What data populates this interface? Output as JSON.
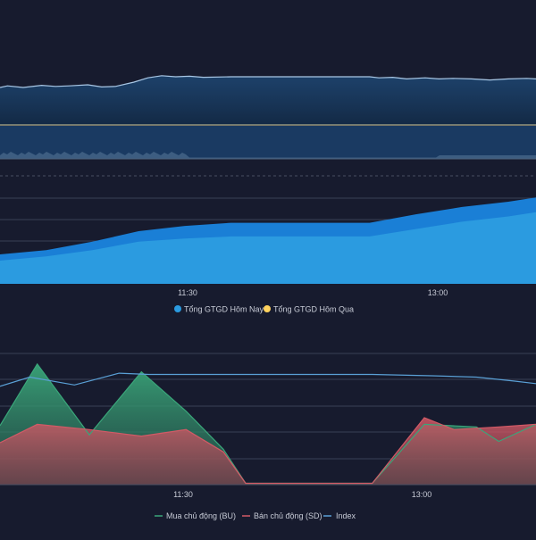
{
  "colors": {
    "background": "#171b2e",
    "grid": "#3a4055",
    "axis_text": "#c7cbd6",
    "index_line": "#a9c8e6",
    "today_gtgd": "#2b9be0",
    "today_gtgd_dark": "#1a7fd6",
    "yesterday_gtgd": "#ffd25e",
    "buy_active": "#3aa67a",
    "sell_active": "#d25a66",
    "index_legend": "#5aa0d6"
  },
  "chart_data": [
    {
      "id": "index-chart",
      "type": "line",
      "title": "",
      "series": [
        {
          "values": [
            [
              9.0,
              0.7
            ],
            [
              9.08,
              0.73
            ],
            [
              9.25,
              0.7
            ],
            [
              9.45,
              0.74
            ],
            [
              9.6,
              0.72
            ],
            [
              9.75,
              0.73
            ],
            [
              9.95,
              0.75
            ],
            [
              10.1,
              0.71
            ],
            [
              10.25,
              0.72
            ],
            [
              10.45,
              0.8
            ],
            [
              10.6,
              0.88
            ],
            [
              10.75,
              0.92
            ],
            [
              10.9,
              0.9
            ],
            [
              11.05,
              0.91
            ],
            [
              11.2,
              0.89
            ],
            [
              11.5,
              0.9
            ],
            [
              11.9,
              0.9
            ],
            [
              12.5,
              0.9
            ],
            [
              13.0,
              0.9
            ],
            [
              13.1,
              0.88
            ],
            [
              13.25,
              0.89
            ],
            [
              13.4,
              0.86
            ],
            [
              13.6,
              0.88
            ],
            [
              13.75,
              0.86
            ],
            [
              13.9,
              0.87
            ],
            [
              14.1,
              0.86
            ],
            [
              14.3,
              0.84
            ],
            [
              14.5,
              0.86
            ],
            [
              14.7,
              0.87
            ],
            [
              14.8,
              0.86
            ]
          ]
        }
      ]
    },
    {
      "id": "gtgd-chart",
      "type": "area",
      "x_ticks": [
        "11:30",
        "13:00"
      ],
      "series": [
        {
          "name": "Tổng GTGD Hôm Nay",
          "values": [
            [
              9.0,
              0.28
            ],
            [
              9.5,
              0.32
            ],
            [
              10.0,
              0.4
            ],
            [
              10.5,
              0.5
            ],
            [
              11.0,
              0.55
            ],
            [
              11.5,
              0.58
            ],
            [
              12.0,
              0.58
            ],
            [
              12.5,
              0.58
            ],
            [
              13.0,
              0.58
            ],
            [
              13.5,
              0.66
            ],
            [
              14.0,
              0.73
            ],
            [
              14.5,
              0.78
            ],
            [
              14.8,
              0.82
            ]
          ]
        },
        {
          "name": "Tổng GTGD Hôm Qua",
          "values": [
            [
              9.0,
              0.22
            ],
            [
              9.5,
              0.26
            ],
            [
              10.0,
              0.32
            ],
            [
              10.5,
              0.4
            ],
            [
              11.0,
              0.43
            ],
            [
              11.5,
              0.45
            ],
            [
              12.0,
              0.45
            ],
            [
              12.5,
              0.45
            ],
            [
              13.0,
              0.45
            ],
            [
              13.5,
              0.52
            ],
            [
              14.0,
              0.59
            ],
            [
              14.5,
              0.64
            ],
            [
              14.8,
              0.68
            ]
          ]
        }
      ]
    },
    {
      "id": "active-flow-chart",
      "type": "area",
      "x_ticks": [
        "11:30",
        "13:00"
      ],
      "series": [
        {
          "name": "Mua chủ động (BU)",
          "values": [
            [
              9.0,
              0.45
            ],
            [
              9.5,
              0.92
            ],
            [
              10.2,
              0.38
            ],
            [
              10.9,
              0.86
            ],
            [
              11.5,
              0.56
            ],
            [
              12.0,
              0.27
            ],
            [
              12.3,
              0.01
            ],
            [
              13.4,
              0.01
            ],
            [
              14.0,
              0.01
            ],
            [
              14.7,
              0.46
            ],
            [
              15.4,
              0.44
            ],
            [
              15.7,
              0.33
            ],
            [
              16.2,
              0.46
            ]
          ]
        },
        {
          "name": "Bán chủ động (SD)",
          "values": [
            [
              9.0,
              0.32
            ],
            [
              9.5,
              0.46
            ],
            [
              10.2,
              0.42
            ],
            [
              10.9,
              0.37
            ],
            [
              11.5,
              0.42
            ],
            [
              12.0,
              0.25
            ],
            [
              12.3,
              0.01
            ],
            [
              13.4,
              0.01
            ],
            [
              14.0,
              0.01
            ],
            [
              14.7,
              0.51
            ],
            [
              15.1,
              0.42
            ],
            [
              15.7,
              0.44
            ],
            [
              16.2,
              0.46
            ]
          ]
        },
        {
          "name": "Index",
          "values": [
            [
              9.0,
              0.75
            ],
            [
              9.4,
              0.82
            ],
            [
              10.0,
              0.76
            ],
            [
              10.6,
              0.85
            ],
            [
              11.0,
              0.84
            ],
            [
              12.0,
              0.84
            ],
            [
              13.0,
              0.84
            ],
            [
              14.0,
              0.84
            ],
            [
              14.8,
              0.83
            ],
            [
              15.4,
              0.82
            ],
            [
              15.9,
              0.79
            ],
            [
              16.2,
              0.77
            ]
          ]
        }
      ]
    }
  ],
  "legend_gtgd": {
    "today": "Tổng GTGD Hôm Nay",
    "yesterday": "Tổng GTGD Hôm Qua"
  },
  "legend_flow": {
    "buy": "Mua chủ động (BU)",
    "sell": "Bán chủ động (SD)",
    "index": "Index"
  },
  "ticks": {
    "t1": "11:30",
    "t2": "13:00"
  }
}
